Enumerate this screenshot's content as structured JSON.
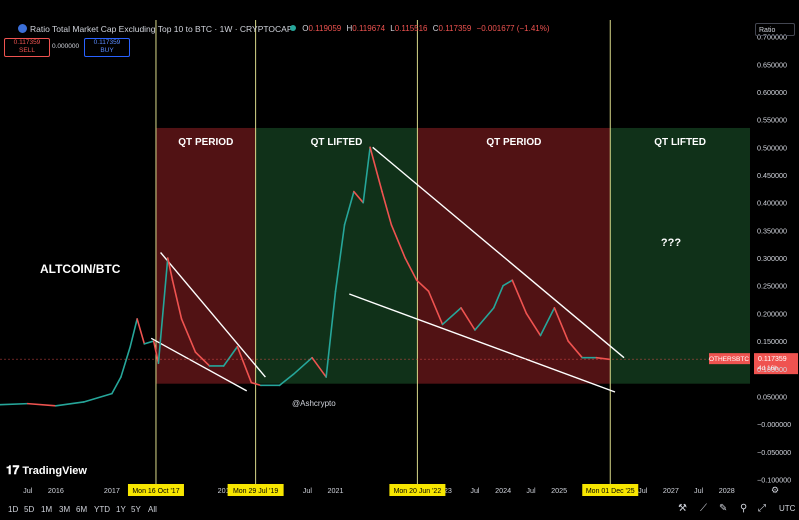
{
  "header": {
    "title": "Ratio Total Market Cap Excluding Top 10 to BTC · 1W · CRYPTOCAP",
    "ohlc": {
      "o_label": "O",
      "o": "0.119059",
      "h_label": "H",
      "h": "0.119674",
      "l_label": "L",
      "l": "0.115516",
      "c_label": "C",
      "c": "0.117359",
      "change": "−0.001677 (−1.41%)"
    },
    "sell_price": "0.117359",
    "sell_label": "SELL",
    "spread": "0.000000",
    "buy_price": "0.117359",
    "buy_label": "BUY",
    "scale_mode": "Ratio"
  },
  "branding": {
    "logo_text": "TradingView",
    "watermark": "@Ashcrypto"
  },
  "timeframes": [
    "1D",
    "5D",
    "1M",
    "3M",
    "6M",
    "YTD",
    "1Y",
    "5Y",
    "All"
  ],
  "timezone": "UTC",
  "colors": {
    "qt_period": "#5a1416",
    "qt_lifted": "#12361c",
    "candle_up": "#26a69a",
    "candle_down": "#ef5350",
    "marker_line": "#d9d98a",
    "date_tag": "#f7e600",
    "price_tag": "#ef5350"
  },
  "chart_data": {
    "type": "line",
    "title": "Ratio Total Market Cap Excluding Top 10 to BTC",
    "symbol_tag": "OTHERSBTC",
    "current_price": "0.117359",
    "countdown": "4d 16h",
    "y_axis": {
      "ticks": [
        "0.700000",
        "0.650000",
        "0.600000",
        "0.550000",
        "0.500000",
        "0.450000",
        "0.400000",
        "0.350000",
        "0.300000",
        "0.250000",
        "0.200000",
        "0.150000",
        "0.100000",
        "0.050000",
        "−0.000000",
        "−0.050000",
        "−0.100000"
      ],
      "range": [
        -0.11,
        0.73
      ]
    },
    "x_axis": {
      "ticks": [
        "Jul",
        "2016",
        "2017",
        "Jul",
        "201",
        "2",
        "Jul",
        "2021",
        "2",
        "'23",
        "Jul",
        "2024",
        "Jul",
        "2025",
        "Jul",
        "2027",
        "Jul",
        "2028"
      ],
      "range": [
        "2015-01-01",
        "2028-06-01"
      ]
    },
    "date_markers": [
      "Mon 16 Oct '17",
      "Mon 29 Jul '19",
      "Mon 20 Jun '22",
      "Mon 01 Dec '25"
    ],
    "regions": [
      {
        "label": "QT PERIOD",
        "start": "2017-10-16",
        "end": "2019-07-29",
        "kind": "qt_period"
      },
      {
        "label": "QT LIFTED",
        "start": "2019-07-29",
        "end": "2022-06-20",
        "kind": "qt_lifted"
      },
      {
        "label": "QT PERIOD",
        "start": "2022-06-20",
        "end": "2025-12-01",
        "kind": "qt_period"
      },
      {
        "label": "QT LIFTED",
        "start": "2025-12-01",
        "end": "2028-06-01",
        "kind": "qt_lifted"
      }
    ],
    "annotations": [
      "ALTCOIN/BTC",
      "???"
    ],
    "series": [
      {
        "x": [
          "2015-01-01",
          "2015-07-01",
          "2016-01-01",
          "2016-07-01",
          "2017-01-01",
          "2017-03-01",
          "2017-05-01",
          "2017-06-15",
          "2017-08-01",
          "2017-10-01",
          "2017-11-01",
          "2018-01-01",
          "2018-02-01",
          "2018-04-01",
          "2018-07-01",
          "2018-10-01",
          "2019-01-01",
          "2019-04-01",
          "2019-07-01",
          "2019-09-01",
          "2020-01-01",
          "2020-04-01",
          "2020-08-01",
          "2020-11-01",
          "2021-01-01",
          "2021-03-01",
          "2021-05-01",
          "2021-07-01",
          "2021-08-15",
          "2021-11-01",
          "2022-01-01",
          "2022-04-01",
          "2022-06-15",
          "2022-09-01",
          "2022-12-01",
          "2023-04-01",
          "2023-07-01",
          "2023-11-01",
          "2024-01-01",
          "2024-03-01",
          "2024-06-01",
          "2024-09-01",
          "2024-12-01",
          "2025-03-01",
          "2025-06-01",
          "2025-09-01",
          "2025-11-24"
        ],
        "y": [
          0.035,
          0.037,
          0.033,
          0.04,
          0.055,
          0.085,
          0.14,
          0.19,
          0.145,
          0.15,
          0.11,
          0.3,
          0.26,
          0.19,
          0.13,
          0.105,
          0.105,
          0.14,
          0.075,
          0.07,
          0.07,
          0.09,
          0.12,
          0.085,
          0.24,
          0.36,
          0.42,
          0.4,
          0.5,
          0.42,
          0.36,
          0.3,
          0.26,
          0.24,
          0.18,
          0.21,
          0.17,
          0.21,
          0.25,
          0.26,
          0.2,
          0.16,
          0.21,
          0.15,
          0.12,
          0.12,
          0.117
        ]
      }
    ]
  }
}
